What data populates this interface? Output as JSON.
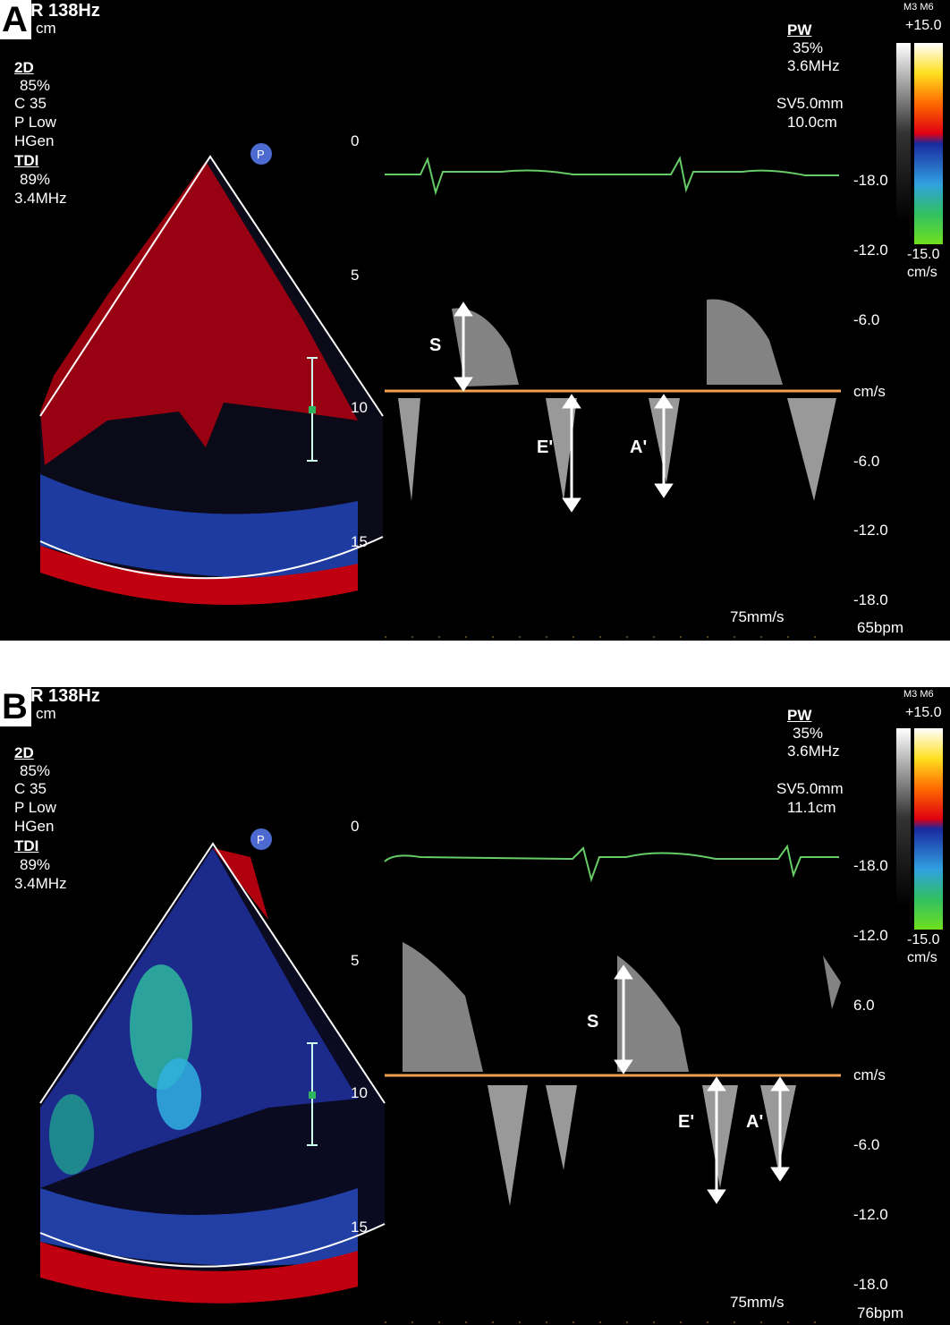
{
  "panels": [
    {
      "label": "A",
      "header": {
        "rate": "R 138Hz",
        "unit": "cm"
      },
      "left_info": {
        "mode_2d": "2D",
        "gain_2d": "85%",
        "compression": "C 35",
        "power": "P Low",
        "freq_mode": "HGen",
        "mode_tdi": "TDI",
        "gain_tdi": "89%",
        "freq_tdi": "3.4MHz"
      },
      "right_info": {
        "mode": "PW",
        "gain": "35%",
        "freq": "3.6MHz",
        "sample_volume": "SV5.0mm",
        "depth": "10.0cm"
      },
      "colorbar": {
        "header": "M3 M6",
        "top": "+15.0",
        "bottom": "-15.0",
        "unit": "cm/s"
      },
      "depth_ticks": [
        "0",
        "5",
        "10",
        "15"
      ],
      "velocity_ticks": [
        "-18.0",
        "-12.0",
        "-6.0",
        "cm/s",
        "-6.0",
        "-12.0",
        "-18.0"
      ],
      "wave_labels": {
        "s": "S",
        "e": "E'",
        "a": "A'"
      },
      "sweep": "75mm/s",
      "heart_rate": "65bpm"
    },
    {
      "label": "B",
      "header": {
        "rate": "R 138Hz",
        "unit": "cm"
      },
      "left_info": {
        "mode_2d": "2D",
        "gain_2d": "85%",
        "compression": "C 35",
        "power": "P Low",
        "freq_mode": "HGen",
        "mode_tdi": "TDI",
        "gain_tdi": "89%",
        "freq_tdi": "3.4MHz"
      },
      "right_info": {
        "mode": "PW",
        "gain": "35%",
        "freq": "3.6MHz",
        "sample_volume": "SV5.0mm",
        "depth": "11.1cm"
      },
      "colorbar": {
        "header": "M3 M6",
        "top": "+15.0",
        "bottom": "-15.0",
        "unit": "cm/s"
      },
      "depth_ticks": [
        "0",
        "5",
        "10",
        "15"
      ],
      "velocity_ticks": [
        "-18.0",
        "-12.0",
        "6.0",
        "cm/s",
        "-6.0",
        "-12.0",
        "-18.0"
      ],
      "wave_labels": {
        "s": "S",
        "e": "E'",
        "a": "A'"
      },
      "sweep": "75mm/s",
      "heart_rate": "76bpm"
    }
  ],
  "colors": {
    "baseline": "#f0a050",
    "ecg": "#66cc66",
    "background": "#000000"
  }
}
